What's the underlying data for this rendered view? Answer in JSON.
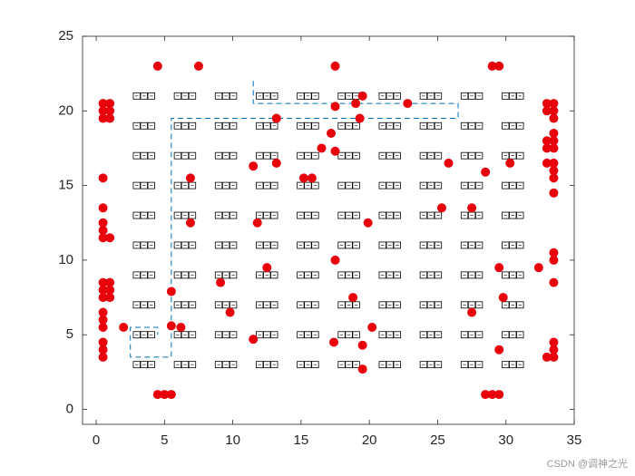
{
  "chart_data": {
    "type": "scatter",
    "xlim": [
      -1,
      35
    ],
    "ylim": [
      -1,
      25
    ],
    "xticks": [
      0,
      5,
      10,
      15,
      20,
      25,
      30,
      35
    ],
    "yticks": [
      0,
      5,
      10,
      15,
      20,
      25
    ],
    "shelves": {
      "color": "#000000",
      "x": [
        3.5,
        6.5,
        9.5,
        12.5,
        15.5,
        18.5,
        21.5,
        24.5,
        27.5,
        30.5
      ],
      "y": [
        3,
        5,
        7,
        9,
        11,
        13,
        15,
        17,
        19,
        21
      ]
    },
    "path": {
      "color": "#0072bd",
      "x": [
        11.5,
        11.5,
        26.5,
        26.5,
        5.5,
        5.5,
        2.5,
        2.5,
        4.5,
        4.5
      ],
      "y": [
        22,
        20.5,
        20.5,
        19.5,
        19.5,
        3.5,
        3.5,
        5.5,
        5.5,
        5
      ]
    },
    "series": [
      {
        "color": "#e8000b",
        "x": [
          0.5,
          1,
          0.5,
          1,
          0.5,
          1,
          0.5,
          0.5,
          0.5,
          0.5,
          0.5,
          1,
          0.5,
          1,
          0.5,
          1,
          0.5,
          1,
          0.5,
          0.5,
          0.5,
          2,
          0.5,
          0.5,
          0.5,
          4.5,
          7.5,
          17.5,
          29,
          29.5,
          4.5,
          5,
          5.5,
          28.5,
          29,
          29.5,
          33,
          33.5,
          33,
          33.5,
          33.5,
          33.5,
          33,
          33.5,
          33,
          33.5,
          33,
          33.5,
          33.5,
          33.5,
          33.5,
          33.5,
          33.5,
          33.5,
          33.5,
          33.5,
          33,
          33.5,
          5.5,
          5.5,
          6.2,
          6.9,
          6.9,
          9.1,
          9.8,
          11.5,
          11.8,
          11.5,
          12.5,
          13.2,
          13.2,
          15.2,
          15.8,
          16.5,
          17.2,
          17.5,
          17.5,
          17.5,
          17.4,
          18.8,
          19,
          19.3,
          19.5,
          19.5,
          19.5,
          19.9,
          20.2,
          22.8,
          25.3,
          25.8,
          27.5,
          27.5,
          28.5,
          29.5,
          29.5,
          29.8,
          30.3,
          32.4
        ],
        "values": [
          20.5,
          20.5,
          20,
          20,
          19.5,
          19.5,
          15.5,
          13.5,
          12.5,
          12,
          11.5,
          11.5,
          8.5,
          8.5,
          8,
          8,
          7.5,
          7.5,
          6.5,
          6,
          5.5,
          5.5,
          4.5,
          4,
          3.5,
          23,
          23,
          23,
          23,
          23,
          1,
          1,
          1,
          1,
          1,
          1,
          20.5,
          20.5,
          20,
          20,
          19.5,
          18.5,
          18,
          18,
          17.5,
          17.5,
          16.5,
          16.5,
          16,
          15.5,
          14.5,
          10.5,
          10,
          8.5,
          4.5,
          4,
          3.5,
          3.5,
          7.9,
          5.6,
          5.5,
          15.5,
          12.5,
          8.5,
          6.5,
          16.3,
          12.5,
          4.7,
          9.5,
          19.5,
          16.5,
          15.5,
          15.5,
          17.5,
          18.5,
          20.3,
          17.3,
          10,
          4.5,
          7.5,
          20.5,
          19.5,
          21,
          4.3,
          2.7,
          12.5,
          5.5,
          20.5,
          13.5,
          16.5,
          13.5,
          6.5,
          15.9,
          9.5,
          4,
          7.5,
          16.5,
          9.5
        ]
      }
    ],
    "watermark": "CSDN @调神之光"
  }
}
